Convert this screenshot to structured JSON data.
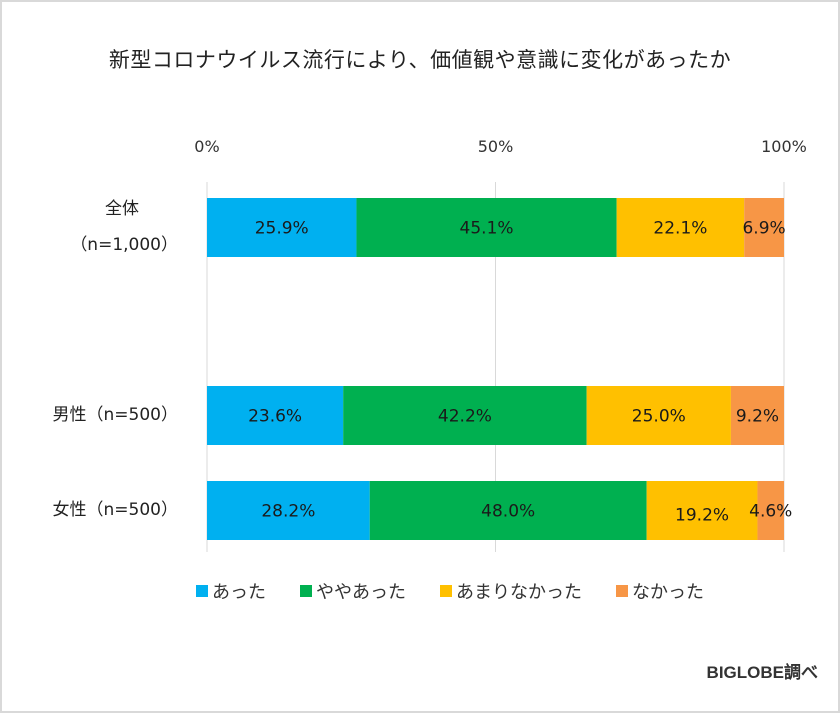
{
  "title": "新型コロナウイルス流行により、価値観や意識に変化があったか",
  "source": "BIGLOBE調べ",
  "chart_data": {
    "type": "bar",
    "orientation": "horizontal",
    "stacked": true,
    "title": "新型コロナウイルス流行により、価値観や意識に変化があったか",
    "xlabel": "",
    "ylabel": "",
    "xlim": [
      0,
      100
    ],
    "x_ticks": [
      "0%",
      "50%",
      "100%"
    ],
    "x_tick_values": [
      0,
      50,
      100
    ],
    "grid": true,
    "legend_position": "bottom",
    "categories": [
      {
        "label_lines": [
          "全体",
          "（n=1,000）"
        ]
      },
      {
        "label_lines": [
          "男性（n=500）"
        ]
      },
      {
        "label_lines": [
          "女性（n=500）"
        ]
      }
    ],
    "series": [
      {
        "name": "あった",
        "color": "#00b0f0",
        "values": [
          25.9,
          23.6,
          28.2
        ],
        "labels": [
          "25.9%",
          "23.6%",
          "28.2%"
        ]
      },
      {
        "name": "ややあった",
        "color": "#00b050",
        "values": [
          45.1,
          42.2,
          48.0
        ],
        "labels": [
          "45.1%",
          "42.2%",
          "48.0%"
        ]
      },
      {
        "name": "あまりなかった",
        "color": "#ffc000",
        "values": [
          22.1,
          25.0,
          19.2
        ],
        "labels": [
          "22.1%",
          "25.0%",
          "19.2%"
        ]
      },
      {
        "name": "なかった",
        "color": "#f79646",
        "values": [
          6.9,
          9.2,
          4.6
        ],
        "labels": [
          "6.9%",
          "9.2%",
          "4.6%"
        ]
      }
    ]
  }
}
